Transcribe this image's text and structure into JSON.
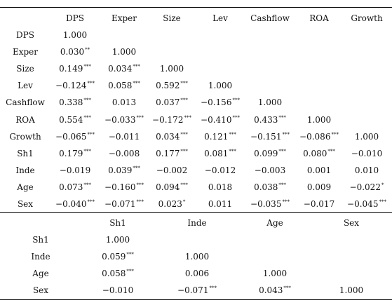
{
  "table1": {
    "columns": [
      "DPS",
      "Exper",
      "Size",
      "Lev",
      "Cashflow",
      "ROA",
      "Growth"
    ],
    "rows": [
      {
        "label": "DPS",
        "cells": [
          [
            "1.000",
            ""
          ]
        ]
      },
      {
        "label": "Exper",
        "cells": [
          [
            "0.030",
            "**"
          ],
          [
            "1.000",
            ""
          ]
        ]
      },
      {
        "label": "Size",
        "cells": [
          [
            "0.149",
            "***"
          ],
          [
            "0.034",
            "***"
          ],
          [
            "1.000",
            ""
          ]
        ]
      },
      {
        "label": "Lev",
        "cells": [
          [
            "−0.124",
            "***"
          ],
          [
            "0.058",
            "***"
          ],
          [
            "0.592",
            "***"
          ],
          [
            "1.000",
            ""
          ]
        ]
      },
      {
        "label": "Cashflow",
        "cells": [
          [
            "0.338",
            "***"
          ],
          [
            "0.013",
            ""
          ],
          [
            "0.037",
            "***"
          ],
          [
            "−0.156",
            "***"
          ],
          [
            "1.000",
            ""
          ]
        ]
      },
      {
        "label": "ROA",
        "cells": [
          [
            "0.554",
            "***"
          ],
          [
            "−0.033",
            "***"
          ],
          [
            "−0.172",
            "***"
          ],
          [
            "−0.410",
            "***"
          ],
          [
            "0.433",
            "***"
          ],
          [
            "1.000",
            ""
          ]
        ]
      },
      {
        "label": "Growth",
        "cells": [
          [
            "−0.065",
            "***"
          ],
          [
            "−0.011",
            ""
          ],
          [
            "0.034",
            "***"
          ],
          [
            "0.121",
            "***"
          ],
          [
            "−0.151",
            "***"
          ],
          [
            "−0.086",
            "***"
          ],
          [
            "1.000",
            ""
          ]
        ]
      },
      {
        "label": "Sh1",
        "cells": [
          [
            "0.179",
            "***"
          ],
          [
            "−0.008",
            ""
          ],
          [
            "0.177",
            "***"
          ],
          [
            "0.081",
            "***"
          ],
          [
            "0.099",
            "***"
          ],
          [
            "0.080",
            "***"
          ],
          [
            "−0.010",
            ""
          ]
        ]
      },
      {
        "label": "Inde",
        "cells": [
          [
            "−0.019",
            ""
          ],
          [
            "0.039",
            "***"
          ],
          [
            "−0.002",
            ""
          ],
          [
            "−0.012",
            ""
          ],
          [
            "−0.003",
            ""
          ],
          [
            "0.001",
            ""
          ],
          [
            "0.010",
            ""
          ]
        ]
      },
      {
        "label": "Age",
        "cells": [
          [
            "0.073",
            "***"
          ],
          [
            "−0.160",
            "***"
          ],
          [
            "0.094",
            "***"
          ],
          [
            "0.018",
            ""
          ],
          [
            "0.038",
            "***"
          ],
          [
            "0.009",
            ""
          ],
          [
            "−0.022",
            "*"
          ]
        ]
      },
      {
        "label": "Sex",
        "cells": [
          [
            "−0.040",
            "***"
          ],
          [
            "−0.071",
            "***"
          ],
          [
            "0.023",
            "*"
          ],
          [
            "0.011",
            ""
          ],
          [
            "−0.035",
            "***"
          ],
          [
            "−0.017",
            ""
          ],
          [
            "−0.045",
            "***"
          ]
        ]
      }
    ]
  },
  "table2": {
    "columns": [
      "Sh1",
      "Inde",
      "Age",
      "Sex"
    ],
    "rows": [
      {
        "label": "Sh1",
        "cells": [
          [
            "1.000",
            ""
          ]
        ]
      },
      {
        "label": "Inde",
        "cells": [
          [
            "0.059",
            "***"
          ],
          [
            "1.000",
            ""
          ]
        ]
      },
      {
        "label": "Age",
        "cells": [
          [
            "0.058",
            "***"
          ],
          [
            "0.006",
            ""
          ],
          [
            "1.000",
            ""
          ]
        ]
      },
      {
        "label": "Sex",
        "cells": [
          [
            "−0.010",
            ""
          ],
          [
            "−0.071",
            "***"
          ],
          [
            "0.043",
            "***"
          ],
          [
            "1.000",
            ""
          ]
        ]
      }
    ]
  }
}
